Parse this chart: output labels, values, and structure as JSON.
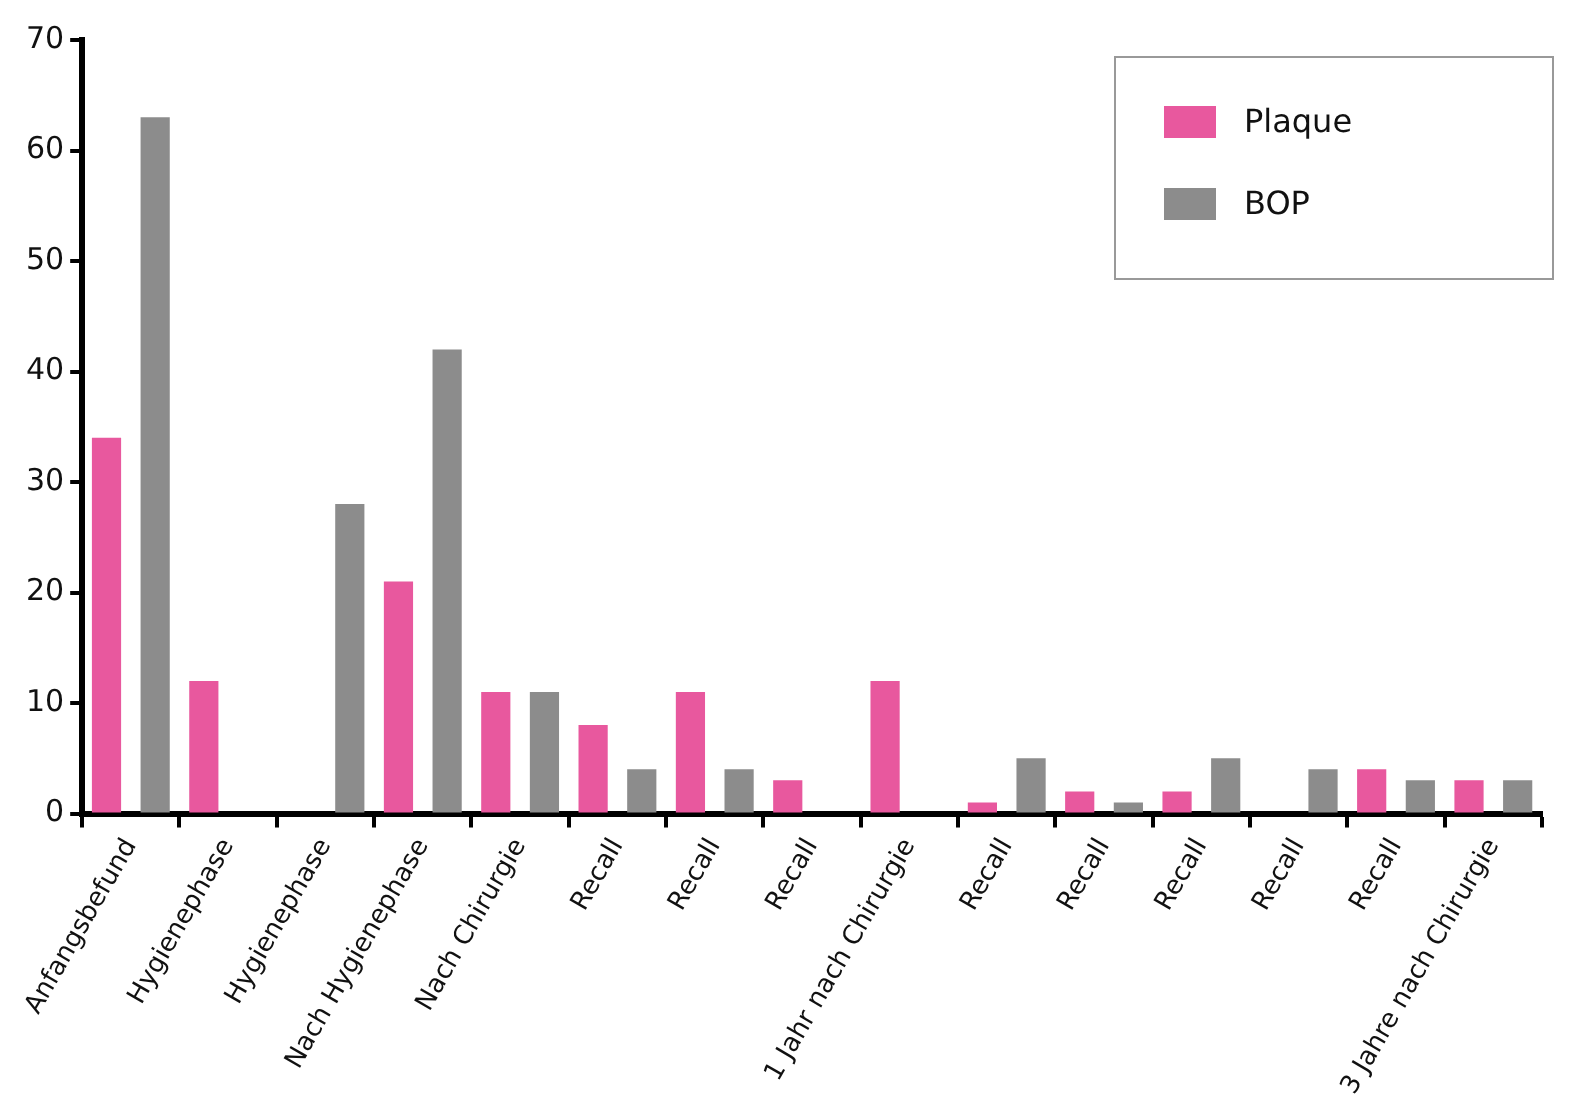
{
  "chart_data": {
    "type": "bar",
    "categories": [
      "Anfangsbefund",
      "Hygienephase",
      "Hygienephase",
      "Nach Hygienephase",
      "Nach Chirurgie",
      "Recall",
      "Recall",
      "Recall",
      "1 Jahr nach Chirurgie",
      "Recall",
      "Recall",
      "Recall",
      "Recall",
      "Recall",
      "3 Jahre nach Chirurgie"
    ],
    "series": [
      {
        "name": "Plaque",
        "color": "#e8589e",
        "values": [
          34,
          12,
          0,
          21,
          11,
          8,
          11,
          3,
          12,
          1,
          2,
          2,
          0,
          4,
          3
        ]
      },
      {
        "name": "BOP",
        "color": "#8c8c8c",
        "values": [
          63,
          0,
          28,
          42,
          11,
          4,
          4,
          0,
          0,
          5,
          1,
          5,
          4,
          3,
          3
        ]
      }
    ],
    "ylim": [
      0,
      70
    ],
    "yticks": [
      0,
      10,
      20,
      30,
      40,
      50,
      60,
      70
    ],
    "grid": false,
    "legend": "top right"
  }
}
